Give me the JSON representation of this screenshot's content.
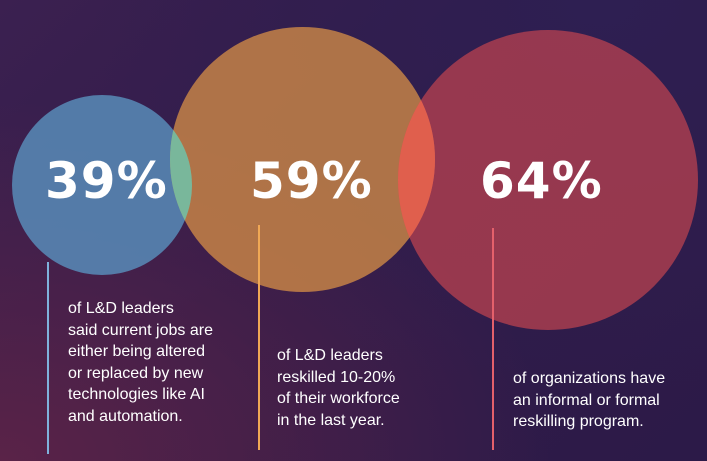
{
  "stats": [
    {
      "value": "39%",
      "lines": [
        "of L&D leaders",
        "said current jobs are",
        "either being altered",
        "or replaced by new",
        "technologies like AI",
        "and automation."
      ],
      "color": "#588cb9"
    },
    {
      "value": "59%",
      "lines": [
        "of L&D leaders",
        "reskilled 10-20%",
        "of their workforce",
        "in the last year."
      ],
      "color": "#d28c46"
    },
    {
      "value": "64%",
      "lines": [
        "of organizations have",
        "an informal or formal",
        "reskilling program."
      ],
      "color": "#c84650"
    }
  ]
}
